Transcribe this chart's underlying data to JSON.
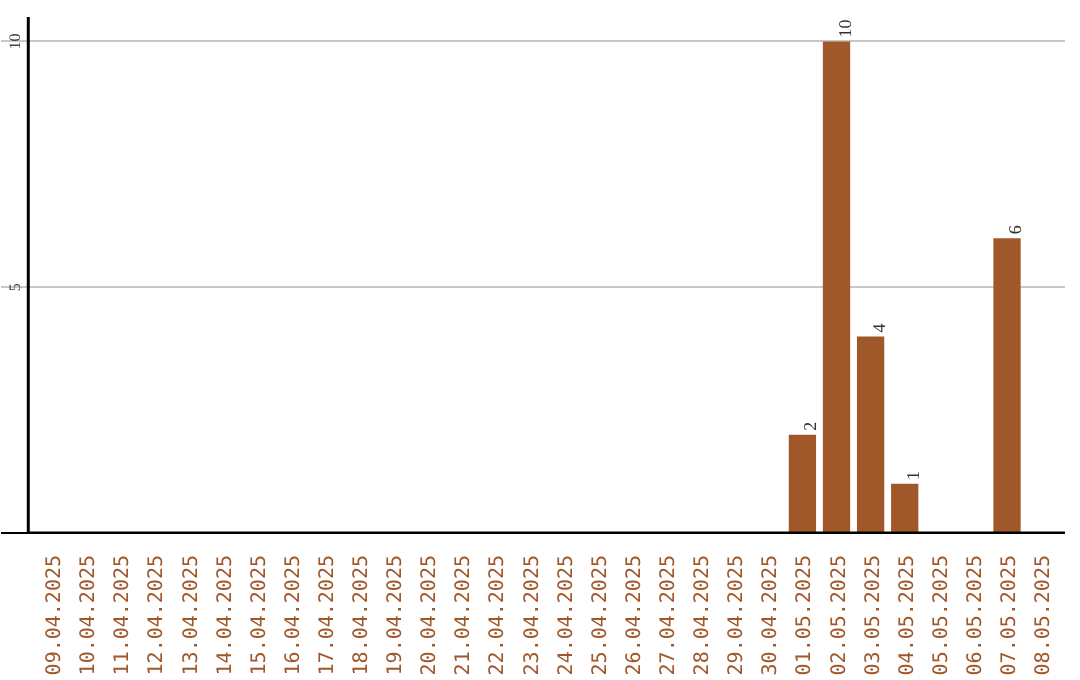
{
  "chart_data": {
    "type": "bar",
    "categories": [
      "09.04.2025",
      "10.04.2025",
      "11.04.2025",
      "12.04.2025",
      "13.04.2025",
      "14.04.2025",
      "15.04.2025",
      "16.04.2025",
      "17.04.2025",
      "18.04.2025",
      "19.04.2025",
      "20.04.2025",
      "21.04.2025",
      "22.04.2025",
      "23.04.2025",
      "24.04.2025",
      "25.04.2025",
      "26.04.2025",
      "27.04.2025",
      "28.04.2025",
      "29.04.2025",
      "30.04.2025",
      "01.05.2025",
      "02.05.2025",
      "03.05.2025",
      "04.05.2025",
      "05.05.2025",
      "06.05.2025",
      "07.05.2025",
      "08.05.2025"
    ],
    "values": [
      0,
      0,
      0,
      0,
      0,
      0,
      0,
      0,
      0,
      0,
      0,
      0,
      0,
      0,
      0,
      0,
      0,
      0,
      0,
      0,
      0,
      0,
      2,
      10,
      4,
      1,
      0,
      0,
      6,
      0
    ],
    "value_labels": [
      null,
      null,
      null,
      null,
      null,
      null,
      null,
      null,
      null,
      null,
      null,
      null,
      null,
      null,
      null,
      null,
      null,
      null,
      null,
      null,
      null,
      null,
      "2",
      "10",
      "4",
      "1",
      null,
      null,
      "6",
      null
    ],
    "color": "#a0582a",
    "ylim": [
      0,
      10.5
    ],
    "yticks": [
      5,
      10
    ],
    "grid": "y"
  }
}
